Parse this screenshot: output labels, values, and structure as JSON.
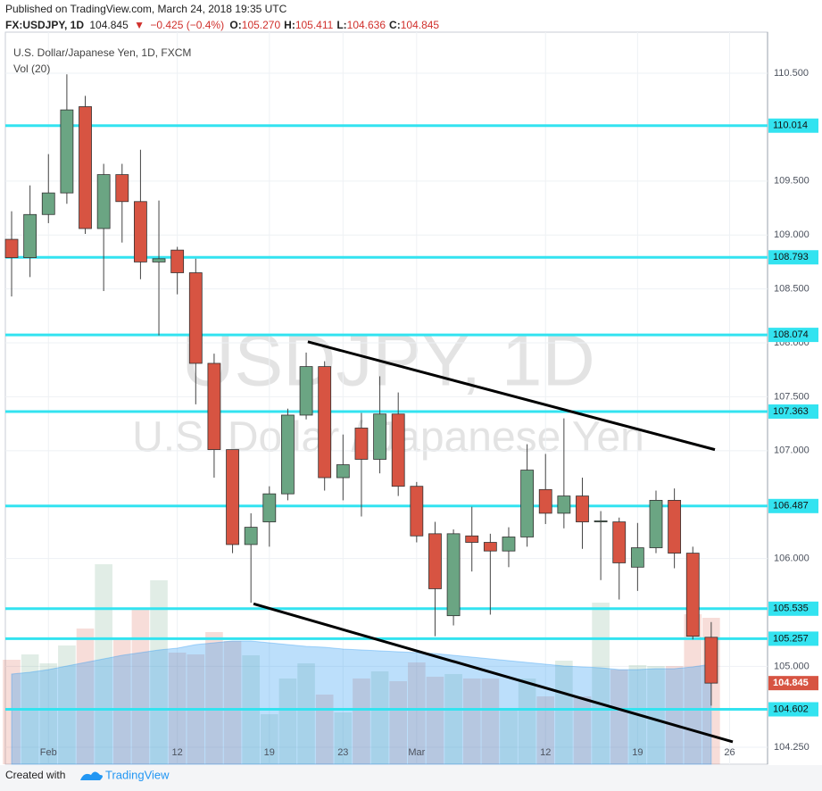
{
  "header": {
    "published": "Published on TradingView.com, March 24, 2018 19:35 UTC",
    "symbol": "FX:USDJPY, 1D",
    "last": "104.845",
    "arrow": "▼",
    "change": "−0.425 (−0.4%)",
    "ohlc": [
      {
        "key": "O:",
        "value": "105.270"
      },
      {
        "key": "H:",
        "value": "105.411"
      },
      {
        "key": "L:",
        "value": "104.636"
      },
      {
        "key": "C:",
        "value": "104.845"
      }
    ]
  },
  "footer": {
    "created": "Created with",
    "brand": "TradingView"
  },
  "chart_data": {
    "type": "candlestick",
    "legend": [
      "U.S. Dollar/Japanese Yen, 1D, FXCM",
      "Vol (20)"
    ],
    "watermark": {
      "symbol": "USDJPY, 1D",
      "name": "U.S. Dollar / Japanese Yen"
    },
    "xlim": [
      -0.34,
      41.06
    ],
    "xticks": [
      {
        "value": 2,
        "label": "Feb"
      },
      {
        "value": 9,
        "label": "12"
      },
      {
        "value": 14,
        "label": "19"
      },
      {
        "value": 18,
        "label": "23"
      },
      {
        "value": 22,
        "label": "Mar"
      },
      {
        "value": 29,
        "label": "12"
      },
      {
        "value": 34,
        "label": "19"
      },
      {
        "value": 39,
        "label": "26"
      }
    ],
    "ylim": [
      104.093,
      110.881
    ],
    "yticks": [
      {
        "value": 110.5,
        "label": "110.500"
      },
      {
        "value": 109.5,
        "label": "109.500"
      },
      {
        "value": 109,
        "label": "109.000"
      },
      {
        "value": 108.5,
        "label": "108.500"
      },
      {
        "value": 108,
        "label": "108.000"
      },
      {
        "value": 107.5,
        "label": "107.500"
      },
      {
        "value": 107,
        "label": "107.000"
      },
      {
        "value": 106,
        "label": "106.000"
      },
      {
        "value": 105,
        "label": "105.000"
      },
      {
        "value": 104.25,
        "label": "104.250"
      }
    ],
    "grid": true,
    "up_color": "#6ba583",
    "down_color": "#d75442",
    "open": [
      108.96,
      108.79,
      109.19,
      109.39,
      110.19,
      109.06,
      109.56,
      109.31,
      108.75,
      108.86,
      108.65,
      107.81,
      107.01,
      106.13,
      106.34,
      106.6,
      107.33,
      107.78,
      106.75,
      107.21,
      106.92,
      107.34,
      106.67,
      106.23,
      105.47,
      106.21,
      106.15,
      106.07,
      106.2,
      106.64,
      106.42,
      106.58,
      106.34,
      106.34,
      105.92,
      106.1,
      106.54,
      106.05,
      105.27
    ],
    "high": [
      109.22,
      109.46,
      109.75,
      110.49,
      110.29,
      109.66,
      109.66,
      109.79,
      109.32,
      108.89,
      108.78,
      107.9,
      107.01,
      106.42,
      106.67,
      107.39,
      107.91,
      107.83,
      107.15,
      107.35,
      107.69,
      107.54,
      106.71,
      106.34,
      106.27,
      106.48,
      106.23,
      106.29,
      107.06,
      106.97,
      107.3,
      106.75,
      106.44,
      106.38,
      106.33,
      106.63,
      106.65,
      106.11,
      105.411
    ],
    "low": [
      108.43,
      108.61,
      109.11,
      109.29,
      109.01,
      108.48,
      108.93,
      108.59,
      108.07,
      108.45,
      107.43,
      106.75,
      106.05,
      105.59,
      106.11,
      106.54,
      107.29,
      106.63,
      106.54,
      106.39,
      106.79,
      106.58,
      106.15,
      105.28,
      105.38,
      105.88,
      105.48,
      105.92,
      106.11,
      106.32,
      106.28,
      106.09,
      105.8,
      105.62,
      105.7,
      106.05,
      105.91,
      105.25,
      104.636
    ],
    "close": [
      108.79,
      109.19,
      109.39,
      110.16,
      109.06,
      109.56,
      109.31,
      108.75,
      108.78,
      108.65,
      107.81,
      107.01,
      106.13,
      106.29,
      106.6,
      107.33,
      107.78,
      106.75,
      106.87,
      106.92,
      107.34,
      106.67,
      106.21,
      105.72,
      106.23,
      106.15,
      106.07,
      106.2,
      106.82,
      106.42,
      106.58,
      106.34,
      106.35,
      105.96,
      106.1,
      106.54,
      106.05,
      105.28,
      104.845
    ],
    "volume": {
      "values": [
        117,
        123,
        113,
        133,
        152,
        224,
        141,
        175,
        206,
        125,
        123,
        148,
        138,
        122,
        56,
        96,
        113,
        78,
        58,
        96,
        104,
        93,
        114,
        98,
        101,
        96,
        96,
        62,
        96,
        76,
        116,
        76,
        181,
        106,
        111,
        110,
        110,
        168,
        164
      ],
      "ma": [
        101,
        103,
        106,
        110,
        114,
        118,
        122,
        125,
        128,
        130,
        134,
        136,
        138,
        138,
        136,
        134,
        132,
        131,
        129,
        128,
        127,
        126,
        125,
        124,
        122,
        120,
        118,
        116,
        114,
        112,
        110,
        109,
        108,
        106,
        106,
        107,
        107,
        109,
        112
      ],
      "vlim": [
        0,
        820
      ],
      "color": "#2196f3"
    },
    "levels": {
      "color": "#33e3f0",
      "values": [
        110.014,
        108.793,
        108.074,
        107.363,
        106.487,
        105.535,
        105.257,
        104.602
      ]
    },
    "trendlines": [
      {
        "x": [
          16.09,
          38.2
        ],
        "y": [
          108.01,
          107.01
        ]
      },
      {
        "x": [
          13.14,
          39.17
        ],
        "y": [
          105.58,
          104.3
        ]
      }
    ],
    "last_price": 104.845
  }
}
